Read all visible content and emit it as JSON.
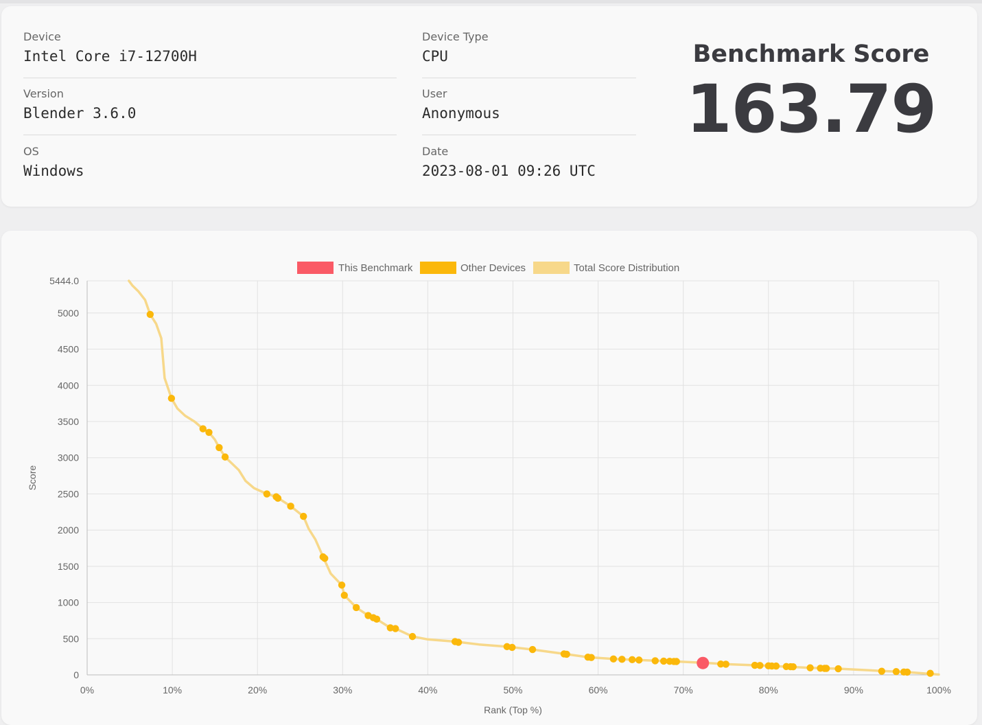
{
  "info": {
    "device_label": "Device",
    "device_value": "Intel Core i7-12700H",
    "version_label": "Version",
    "version_value": "Blender 3.6.0",
    "os_label": "OS",
    "os_value": "Windows",
    "device_type_label": "Device Type",
    "device_type_value": "CPU",
    "user_label": "User",
    "user_value": "Anonymous",
    "date_label": "Date",
    "date_value": "2023-08-01 09:26 UTC"
  },
  "score": {
    "title": "Benchmark Score",
    "value": "163.79"
  },
  "colors": {
    "this_benchmark": "#fa5a66",
    "other_devices": "#fbb80b",
    "distribution": "#f7d88a",
    "grid": "#e2e2e2"
  },
  "chart_data": {
    "type": "scatter",
    "xlabel": "Rank (Top %)",
    "ylabel": "Score",
    "xlim": [
      0,
      100
    ],
    "ylim": [
      0,
      5444.0
    ],
    "x_ticks": [
      "0%",
      "10%",
      "20%",
      "30%",
      "40%",
      "50%",
      "60%",
      "70%",
      "80%",
      "90%",
      "100%"
    ],
    "y_ticks": [
      "0",
      "500",
      "1000",
      "1500",
      "2000",
      "2500",
      "3000",
      "3500",
      "4000",
      "4500",
      "5000",
      "5444.0"
    ],
    "y_tick_values": [
      0,
      500,
      1000,
      1500,
      2000,
      2500,
      3000,
      3500,
      4000,
      4500,
      5000,
      5444
    ],
    "legend": [
      {
        "label": "This Benchmark",
        "color": "#fa5a66"
      },
      {
        "label": "Other Devices",
        "color": "#fbb80b"
      },
      {
        "label": "Total Score Distribution",
        "color": "#f7d88a"
      }
    ],
    "legend_position": "top",
    "grid": true,
    "series": [
      {
        "name": "This Benchmark",
        "points": [
          [
            72.3,
            163.79
          ]
        ]
      },
      {
        "name": "Other Devices",
        "points": [
          [
            7.4,
            4980
          ],
          [
            9.9,
            3820
          ],
          [
            13.6,
            3400
          ],
          [
            14.3,
            3350
          ],
          [
            15.5,
            3140
          ],
          [
            16.2,
            3010
          ],
          [
            21.1,
            2500
          ],
          [
            22.2,
            2460
          ],
          [
            22.4,
            2440
          ],
          [
            23.9,
            2330
          ],
          [
            25.4,
            2190
          ],
          [
            27.7,
            1630
          ],
          [
            27.9,
            1610
          ],
          [
            29.9,
            1240
          ],
          [
            30.2,
            1100
          ],
          [
            31.6,
            930
          ],
          [
            33.0,
            820
          ],
          [
            33.6,
            790
          ],
          [
            34.0,
            770
          ],
          [
            35.6,
            650
          ],
          [
            36.2,
            640
          ],
          [
            38.2,
            530
          ],
          [
            43.2,
            460
          ],
          [
            43.6,
            450
          ],
          [
            49.3,
            390
          ],
          [
            49.9,
            380
          ],
          [
            52.3,
            350
          ],
          [
            56.0,
            290
          ],
          [
            56.3,
            285
          ],
          [
            58.8,
            245
          ],
          [
            59.2,
            240
          ],
          [
            61.8,
            220
          ],
          [
            62.8,
            215
          ],
          [
            64.0,
            210
          ],
          [
            64.8,
            205
          ],
          [
            66.7,
            195
          ],
          [
            67.7,
            190
          ],
          [
            68.4,
            188
          ],
          [
            68.9,
            186
          ],
          [
            69.2,
            185
          ],
          [
            74.4,
            150
          ],
          [
            75.0,
            148
          ],
          [
            78.4,
            132
          ],
          [
            79.0,
            130
          ],
          [
            80.0,
            125
          ],
          [
            80.4,
            123
          ],
          [
            80.9,
            122
          ],
          [
            82.1,
            115
          ],
          [
            82.6,
            113
          ],
          [
            82.9,
            112
          ],
          [
            84.9,
            98
          ],
          [
            86.1,
            92
          ],
          [
            86.6,
            90
          ],
          [
            86.8,
            90
          ],
          [
            88.2,
            85
          ],
          [
            93.3,
            50
          ],
          [
            95.0,
            45
          ],
          [
            95.9,
            40
          ],
          [
            96.3,
            38
          ],
          [
            99.0,
            22
          ]
        ]
      },
      {
        "name": "Total Score Distribution",
        "points": [
          [
            4.9,
            5444
          ],
          [
            5.3,
            5380
          ],
          [
            6.0,
            5300
          ],
          [
            6.8,
            5180
          ],
          [
            7.4,
            4980
          ],
          [
            8.1,
            4850
          ],
          [
            8.7,
            4650
          ],
          [
            9.1,
            4100
          ],
          [
            9.9,
            3820
          ],
          [
            10.6,
            3680
          ],
          [
            11.5,
            3580
          ],
          [
            12.6,
            3500
          ],
          [
            13.6,
            3400
          ],
          [
            14.3,
            3350
          ],
          [
            15.0,
            3250
          ],
          [
            15.5,
            3140
          ],
          [
            16.2,
            3010
          ],
          [
            17.0,
            2920
          ],
          [
            17.8,
            2830
          ],
          [
            18.6,
            2680
          ],
          [
            19.6,
            2580
          ],
          [
            21.1,
            2500
          ],
          [
            22.2,
            2460
          ],
          [
            23.9,
            2330
          ],
          [
            25.4,
            2190
          ],
          [
            26.0,
            2020
          ],
          [
            26.8,
            1870
          ],
          [
            27.7,
            1630
          ],
          [
            28.6,
            1400
          ],
          [
            29.9,
            1240
          ],
          [
            30.2,
            1100
          ],
          [
            31.6,
            930
          ],
          [
            33.0,
            820
          ],
          [
            34.0,
            770
          ],
          [
            35.6,
            650
          ],
          [
            36.2,
            640
          ],
          [
            38.2,
            530
          ],
          [
            40.0,
            490
          ],
          [
            43.2,
            460
          ],
          [
            46.0,
            420
          ],
          [
            49.3,
            390
          ],
          [
            52.3,
            350
          ],
          [
            56.0,
            290
          ],
          [
            58.8,
            245
          ],
          [
            61.8,
            220
          ],
          [
            64.8,
            205
          ],
          [
            69.2,
            185
          ],
          [
            72.3,
            168
          ],
          [
            75.0,
            148
          ],
          [
            80.0,
            125
          ],
          [
            84.9,
            98
          ],
          [
            88.2,
            85
          ],
          [
            93.3,
            55
          ],
          [
            96.3,
            38
          ],
          [
            100.0,
            5
          ]
        ]
      }
    ]
  }
}
